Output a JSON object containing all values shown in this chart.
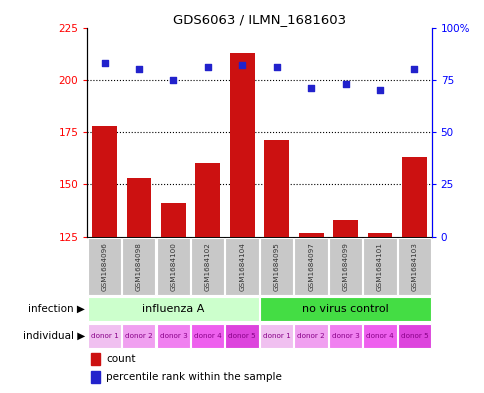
{
  "title": "GDS6063 / ILMN_1681603",
  "samples": [
    "GSM1684096",
    "GSM1684098",
    "GSM1684100",
    "GSM1684102",
    "GSM1684104",
    "GSM1684095",
    "GSM1684097",
    "GSM1684099",
    "GSM1684101",
    "GSM1684103"
  ],
  "counts": [
    178,
    153,
    141,
    160,
    213,
    171,
    127,
    133,
    127,
    163
  ],
  "percentiles": [
    83,
    80,
    75,
    81,
    82,
    81,
    71,
    73,
    70,
    80
  ],
  "ylim_left": [
    125,
    225
  ],
  "ylim_right": [
    0,
    100
  ],
  "yticks_left": [
    125,
    150,
    175,
    200,
    225
  ],
  "yticks_right": [
    0,
    25,
    50,
    75,
    100
  ],
  "ytick_labels_right": [
    "0",
    "25",
    "50",
    "75",
    "100%"
  ],
  "infection_groups": [
    {
      "label": "influenza A",
      "start": 0,
      "end": 5,
      "color": "#ccffcc"
    },
    {
      "label": "no virus control",
      "start": 5,
      "end": 10,
      "color": "#44dd44"
    }
  ],
  "individual_colors": [
    "#f0c0f0",
    "#f0a0f0",
    "#f080f0",
    "#ee60ee",
    "#dd44dd",
    "#f0c0f0",
    "#f0a0f0",
    "#f080f0",
    "#ee60ee",
    "#dd44dd"
  ],
  "bar_color": "#cc1111",
  "scatter_color": "#2222cc",
  "bar_width": 0.72,
  "background_color": "#ffffff",
  "label_count": "count",
  "label_percentile": "percentile rank within the sample",
  "infection_label": "infection",
  "individual_label": "individual",
  "hgrid_values": [
    150,
    175,
    200
  ],
  "sample_bg_color": "#c8c8c8",
  "sample_text_color": "#333333"
}
